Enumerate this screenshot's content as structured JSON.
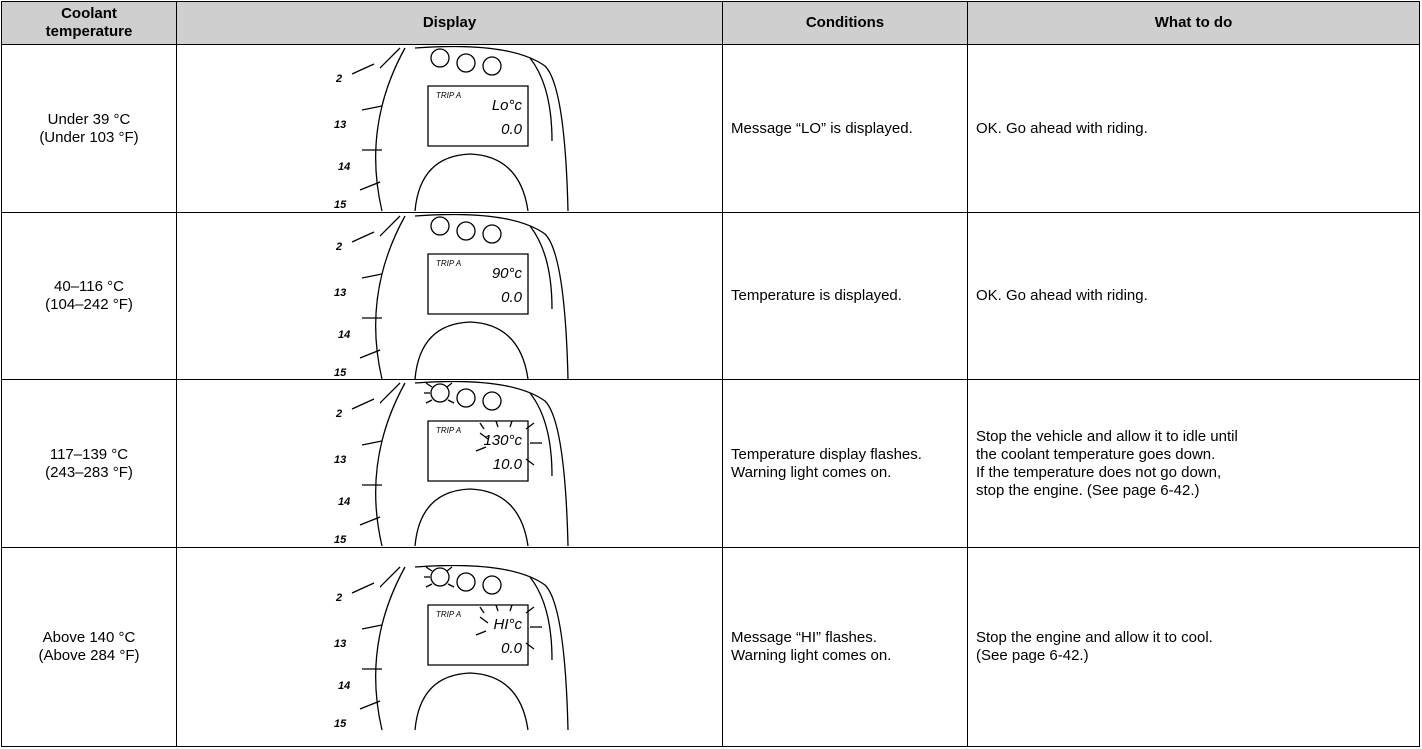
{
  "header": {
    "temperature": [
      "Coolant",
      "temperature"
    ],
    "display": "Display",
    "conditions": "Conditions",
    "action": "What to do"
  },
  "rows": [
    {
      "temperature": [
        "Under 39 °C",
        "(Under 103 °F)"
      ],
      "display": {
        "scale": [
          "2",
          "13",
          "14",
          "15"
        ],
        "trip": "TRIP A",
        "reading": "Lo°c",
        "odometer": "0.0"
      },
      "conditions": [
        "Message “LO” is displayed."
      ],
      "action": [
        "OK. Go ahead with riding."
      ]
    },
    {
      "temperature": [
        "40–116 °C",
        "(104–242 °F)"
      ],
      "display": {
        "scale": [
          "2",
          "13",
          "14",
          "15"
        ],
        "trip": "TRIP A",
        "reading": "90°c",
        "odometer": "0.0"
      },
      "conditions": [
        "Temperature is displayed."
      ],
      "action": [
        "OK. Go ahead with riding."
      ]
    },
    {
      "temperature": [
        "117–139 °C",
        "(243–283 °F)"
      ],
      "display": {
        "scale": [
          "2",
          "13",
          "14",
          "15"
        ],
        "trip": "TRIP A",
        "reading": "130°c",
        "odometer": "10.0"
      },
      "conditions": [
        "Temperature display flashes.",
        "Warning light comes on."
      ],
      "action": [
        "Stop the vehicle and allow it to idle until",
        "the coolant temperature goes down.",
        "If the temperature does not go down,",
        "stop the engine. (See page 6-42.)"
      ]
    },
    {
      "temperature": [
        "Above 140 °C",
        "(Above 284 °F)"
      ],
      "display": {
        "scale": [
          "2",
          "13",
          "14",
          "15"
        ],
        "trip": "TRIP A",
        "reading": "HI°c",
        "odometer": "0.0"
      },
      "conditions": [
        "Message “HI” flashes.",
        "Warning light comes on."
      ],
      "action": [
        "Stop the engine and allow it to cool.",
        "(See page 6-42.)"
      ]
    }
  ]
}
